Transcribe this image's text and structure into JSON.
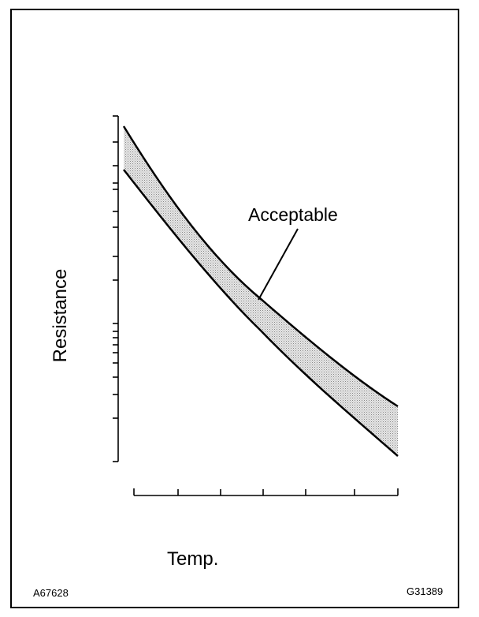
{
  "axis_labels": {
    "y": "Resistance",
    "x": "Temp."
  },
  "annotation": "Acceptable",
  "codes": {
    "left": "A67628",
    "right": "G31389"
  }
}
